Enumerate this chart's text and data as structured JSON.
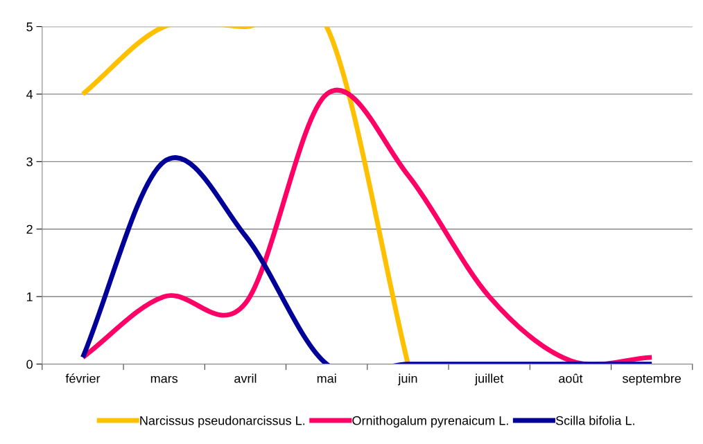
{
  "chart_data": {
    "type": "line",
    "categories": [
      "février",
      "mars",
      "avril",
      "mai",
      "juin",
      "juillet",
      "août",
      "septembre"
    ],
    "series": [
      {
        "name": "Narcissus pseudonarcissus L.",
        "color": "#ffc000",
        "values": [
          4,
          5,
          5,
          5,
          0,
          null,
          null,
          null
        ]
      },
      {
        "name": "Ornithogalum pyrenaicum L.",
        "color": "#ff0066",
        "values": [
          0.1,
          1,
          0.9,
          4,
          2.8,
          1,
          0.05,
          0.1
        ]
      },
      {
        "name": "Scilla bifolia L.",
        "color": "#000099",
        "values": [
          0.1,
          3,
          1.9,
          0,
          0,
          0,
          0,
          0
        ]
      }
    ],
    "ylim": [
      0,
      5
    ],
    "yticks": [
      0,
      1,
      2,
      3,
      4,
      5
    ],
    "grid": "y",
    "legend": "bottom",
    "marker": "none",
    "line_style": "solid"
  }
}
